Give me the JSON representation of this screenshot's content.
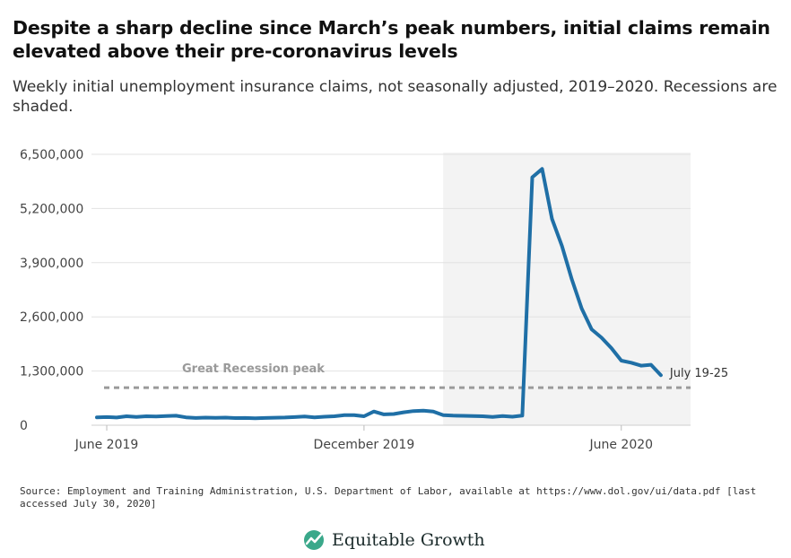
{
  "title": "Despite a sharp decline since March’s peak numbers, initial claims remain elevated above their pre-coronavirus levels",
  "subtitle": "Weekly initial unemployment insurance claims, not seasonally adjusted, 2019–2020. Recessions are shaded.",
  "source": "Source: Employment and Training Administration, U.S. Department of Labor, available at https://www.dol.gov/ui/data.pdf [last accessed July 30, 2020]",
  "brand": {
    "name": "Equitable Growth",
    "logo_icon": "growth-leaf-icon",
    "logo_color": "#3aa88a"
  },
  "chart_data": {
    "type": "line",
    "title": "Despite a sharp decline since March’s peak numbers, initial claims remain elevated above their pre-coronavirus levels",
    "subtitle": "Weekly initial unemployment insurance claims, not seasonally adjusted, 2019–2020. Recessions are shaded.",
    "xlabel": "",
    "ylabel": "",
    "ylim": [
      0,
      6500000
    ],
    "yticks": [
      {
        "value": 0,
        "label": "0"
      },
      {
        "value": 1300000,
        "label": "1,300,000"
      },
      {
        "value": 2600000,
        "label": "2,600,000"
      },
      {
        "value": 3900000,
        "label": "3,900,000"
      },
      {
        "value": 5200000,
        "label": "5,200,000"
      },
      {
        "value": 6500000,
        "label": "6,500,000"
      }
    ],
    "xlim": [
      0,
      60
    ],
    "xticks": [
      {
        "value": 1,
        "label": "June 2019"
      },
      {
        "value": 27,
        "label": "December 2019"
      },
      {
        "value": 53,
        "label": "June 2020"
      }
    ],
    "grid": true,
    "line_color": "#1f6fa6",
    "recession_shading": {
      "x_start": 35,
      "x_end": 60,
      "color": "#f3f3f3"
    },
    "reference_line": {
      "value": 900000,
      "label": "Great Recession peak",
      "color": "#9a9a9a"
    },
    "end_label": "July 19-25",
    "series": [
      {
        "x": [
          0,
          1,
          2,
          3,
          4,
          5,
          6,
          7,
          8,
          9,
          10,
          11,
          12,
          13,
          14,
          15,
          16,
          17,
          18,
          19,
          20,
          21,
          22,
          23,
          24,
          25,
          26,
          27,
          28,
          29,
          30,
          31,
          32,
          33,
          34,
          35,
          36,
          37,
          38,
          39,
          40,
          41,
          42,
          43,
          44,
          45,
          46,
          47,
          48,
          49,
          50,
          51,
          52,
          53,
          54,
          55,
          56,
          57
        ],
        "values": [
          190000,
          195000,
          185000,
          215000,
          200000,
          215000,
          210000,
          220000,
          228000,
          190000,
          175000,
          182000,
          178000,
          183000,
          172000,
          175000,
          168000,
          175000,
          180000,
          185000,
          195000,
          210000,
          190000,
          205000,
          215000,
          240000,
          240000,
          215000,
          330000,
          260000,
          270000,
          310000,
          340000,
          350000,
          330000,
          240000,
          230000,
          225000,
          220000,
          215000,
          200000,
          220000,
          205000,
          230000,
          5950000,
          6150000,
          4950000,
          4300000,
          3500000,
          2800000,
          2300000,
          2100000,
          1850000,
          1550000,
          1500000,
          1430000,
          1450000,
          1200000
        ]
      }
    ]
  }
}
